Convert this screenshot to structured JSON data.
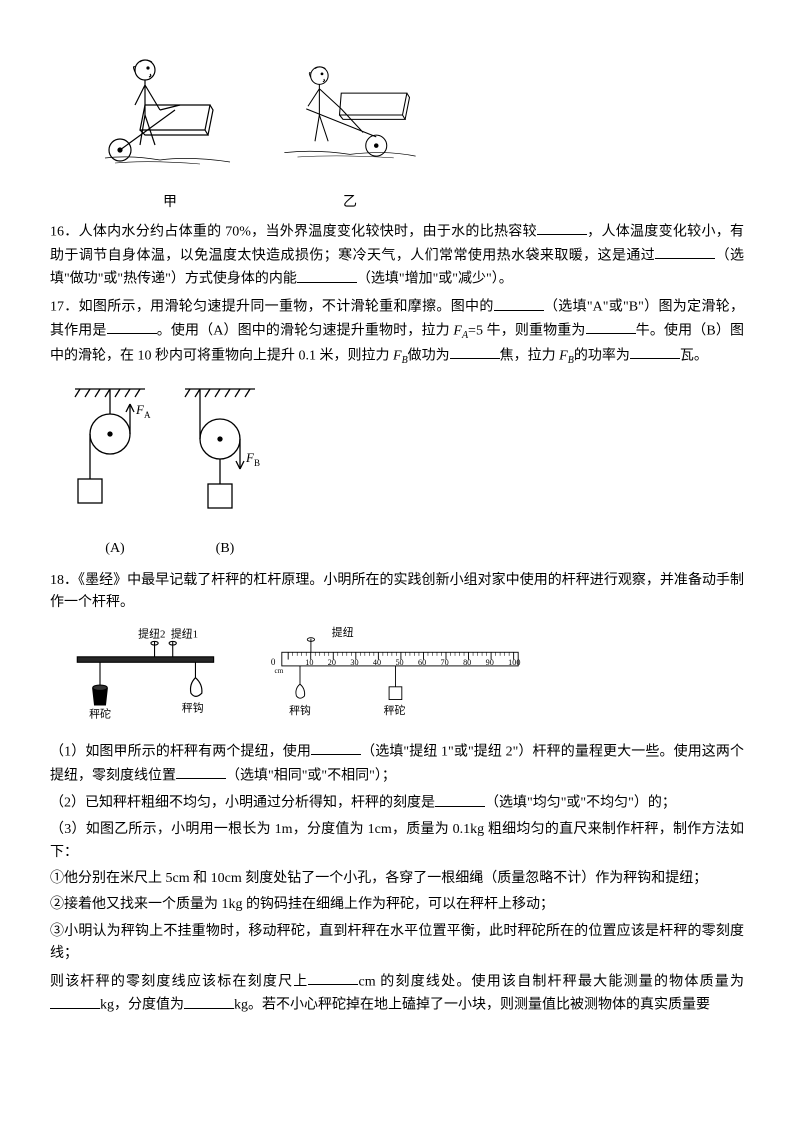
{
  "fig1": {
    "caption_a": "甲",
    "caption_b": "乙"
  },
  "q16": {
    "num": "16．",
    "text1": "人体内水分约占体重的 70%，当外界温度变化较快时，由于水的比热容较",
    "text2": "，人体温度变化较小，有助于调节自身体温，以免温度太快造成损伤；寒冷天气，人们常常使用热水袋来取暖，这是通过",
    "text3": "（选填\"做功\"或\"热传递\"）方式使身体的内能",
    "text4": "（选填\"增加\"或\"减少\"）。"
  },
  "q17": {
    "num": "17．",
    "text1": "如图所示，用滑轮匀速提升同一重物，不计滑轮重和摩擦。图中的",
    "text2": "（选填\"A\"或\"B\"）图为定滑轮，其作用是",
    "text3": "。使用（A）图中的滑轮匀速提升重物时，拉力 ",
    "fa": "F",
    "fa_sub": "A",
    "text4": "=5 牛，则重物重为",
    "text5": "牛。使用（B）图中的滑轮，在 10 秒内可将重物向上提升 0.1 米，则拉力 ",
    "fb": "F",
    "fb_sub": "B",
    "text6": "做功为",
    "text7": "焦，拉力 ",
    "text8": "的功率为",
    "text9": "瓦。",
    "label_a": "(A)",
    "label_b": "(B)",
    "force_a": "F",
    "force_a_sub": "A",
    "force_b": "F",
    "force_b_sub": "B"
  },
  "q18": {
    "num": "18．",
    "text1": "《墨经》中最早记载了杆秤的杠杆原理。小明所在的实践创新小组对家中使用的杆秤进行观察，并准备动手制作一个杆秤。",
    "steelyard": {
      "label1": "提纽2",
      "label2": "提纽1",
      "label3": "秤砣",
      "label4": "秤钩"
    },
    "ruler": {
      "label1": "提纽",
      "label2": "秤钩",
      "label3": "秤砣",
      "ticks": [
        "0",
        "10",
        "20",
        "30",
        "40",
        "50",
        "60",
        "70",
        "80",
        "90",
        "100"
      ],
      "unit": "cm"
    },
    "p1a": "（1）如图甲所示的杆秤有两个提纽，使用",
    "p1b": "（选填\"提纽 1\"或\"提纽 2\"）杆秤的量程更大一些。使用这两个提纽，零刻度线位置",
    "p1c": "（选填\"相同\"或\"不相同\"）；",
    "p2a": "（2）已知秤杆粗细不均匀，小明通过分析得知，杆秤的刻度是",
    "p2b": "（选填\"均匀\"或\"不均匀\"）的；",
    "p3a": "（3）如图乙所示，小明用一根长为 1m，分度值为 1cm，质量为 0.1kg 粗细均匀的直尺来制作杆秤，制作方法如下：",
    "step1": "①他分别在米尺上 5cm 和 10cm 刻度处钻了一个小孔，各穿了一根细绳（质量忽略不计）作为秤钩和提纽；",
    "step2": "②接着他又找来一个质量为 1kg 的钩码挂在细绳上作为秤砣，可以在秤杆上移动；",
    "step3": "③小明认为秤钩上不挂重物时，移动秤砣，直到杆秤在水平位置平衡，此时秤砣所在的位置应该是杆秤的零刻度线；",
    "p4a": "则该杆秤的零刻度线应该标在刻度尺上",
    "p4b": "cm 的刻度线处。使用该自制杆秤最大能测量的物体质量为",
    "p4c": "kg，分度值为",
    "p4d": "kg。若不小心秤砣掉在地上磕掉了一小块，则测量值比被测物体的真实质量要"
  }
}
